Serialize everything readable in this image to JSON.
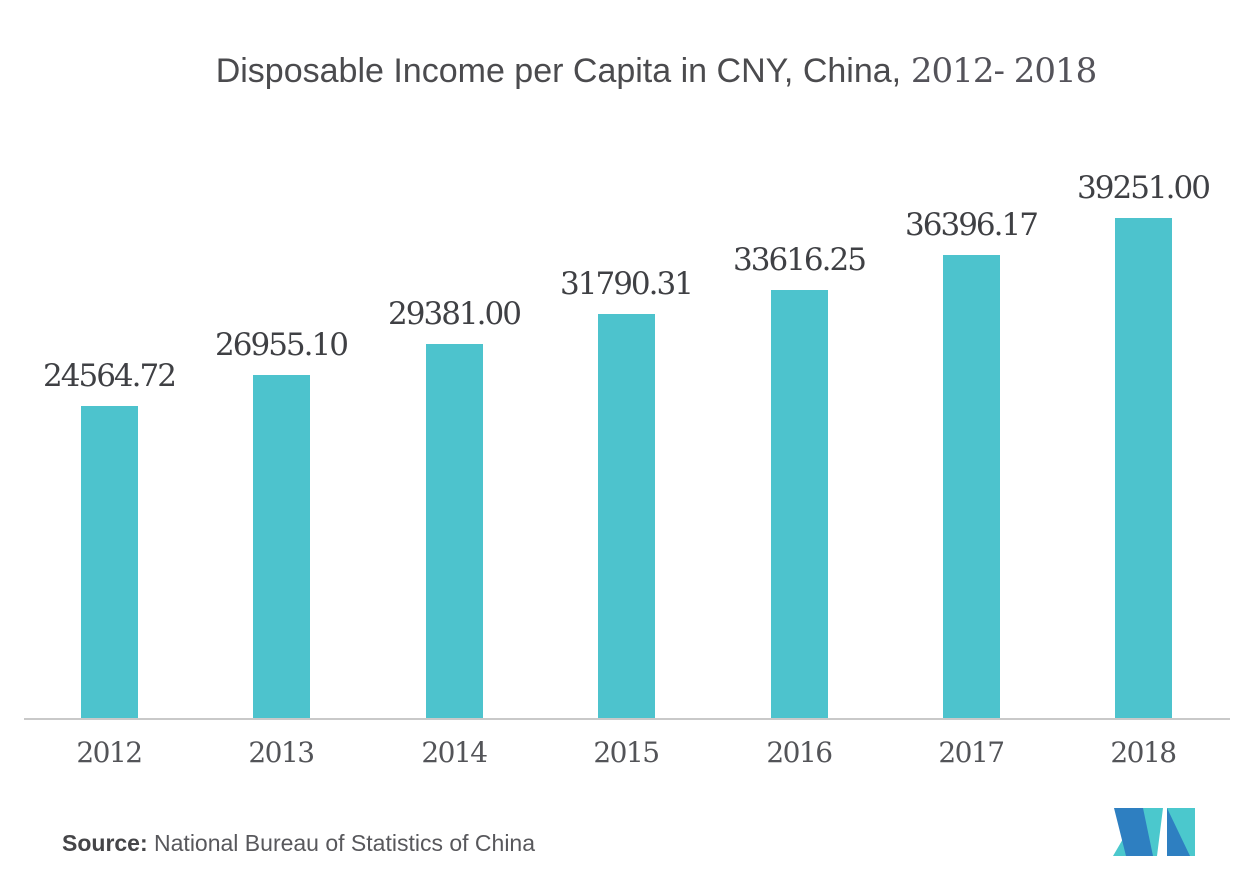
{
  "title": {
    "main": "Disposable Income per Capita in CNY, China,",
    "years": " 2012- 2018"
  },
  "source": {
    "label": "Source:",
    "text": " National Bureau of Statistics of China"
  },
  "colors": {
    "bar": "#4dc3cd",
    "axis_line": "#c9c9c9",
    "title_text": "#4b4b4e",
    "value_label_text": "#3f4044",
    "tick_text": "#535458",
    "logo_blue": "#2e7fc1",
    "logo_teal": "#4bc8cd"
  },
  "logo": {
    "name": "mordor-intelligence-logo"
  },
  "chart_data": {
    "type": "bar",
    "title": "Disposable Income per Capita in CNY, China, 2012- 2018",
    "categories": [
      "2012",
      "2013",
      "2014",
      "2015",
      "2016",
      "2017",
      "2018"
    ],
    "values": [
      24564.72,
      26955.1,
      29381.0,
      31790.31,
      33616.25,
      36396.17,
      39251.0
    ],
    "value_labels": [
      "24564.72",
      "26955.10",
      "29381.00",
      "31790.31",
      "33616.25",
      "36396.17",
      "39251.00"
    ],
    "series_name": "Disposable Income per Capita (CNY)",
    "xlabel": "",
    "ylabel": "",
    "ylim": [
      0,
      39251
    ],
    "grid": false,
    "legend": "none",
    "bar_color": "#4dc3cd",
    "value_labels_shown": true
  }
}
